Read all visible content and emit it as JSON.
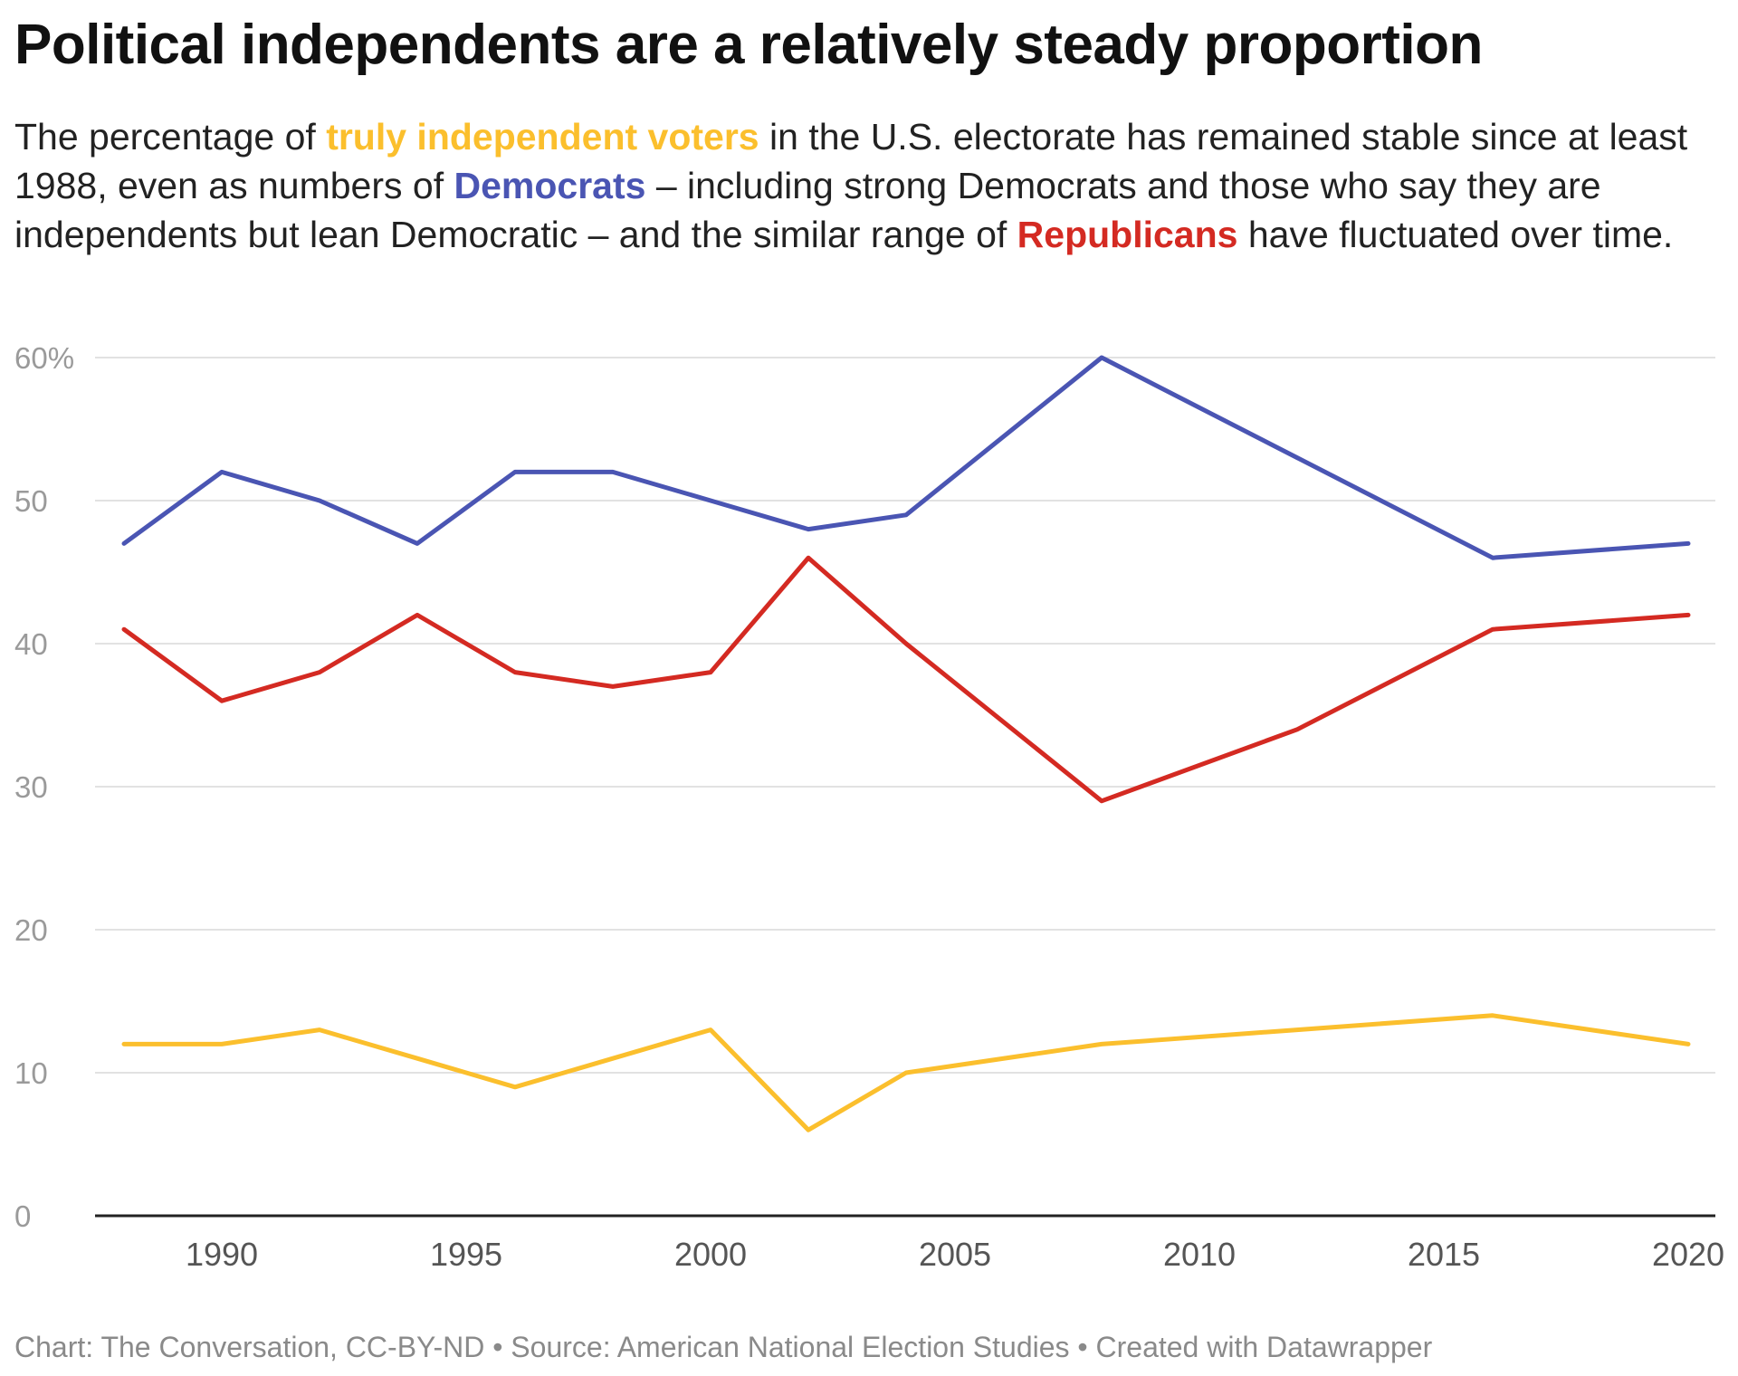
{
  "title": "Political independents are a relatively steady proportion",
  "subtitle": {
    "part1": "The percentage of ",
    "ind": "truly independent voters",
    "part2": " in the U.S. electorate has remained stable since at least 1988, even as numbers of ",
    "dem": "Democrats",
    "part3": " – including strong Democrats and those who say they are independents but lean Democratic – and the similar range of ",
    "rep": "Republicans",
    "part4": " have fluctuated over time."
  },
  "footer": "Chart: The Conversation, CC-BY-ND • Source: American National Election Studies • Created with Datawrapper",
  "chart_data": {
    "type": "line",
    "x": [
      1988,
      1990,
      1992,
      1994,
      1996,
      1998,
      2000,
      2002,
      2004,
      2008,
      2012,
      2016,
      2020
    ],
    "series": [
      {
        "key": "democrats",
        "color": "#4a55b3",
        "values": [
          47,
          52,
          50,
          47,
          52,
          52,
          50,
          48,
          49,
          60,
          53,
          46,
          47
        ]
      },
      {
        "key": "republicans",
        "color": "#d42a22",
        "values": [
          41,
          36,
          38,
          42,
          38,
          37,
          38,
          46,
          40,
          29,
          34,
          41,
          42
        ]
      },
      {
        "key": "independents",
        "color": "#fbbf2d",
        "values": [
          12,
          12,
          13,
          11,
          9,
          11,
          13,
          6,
          10,
          12,
          13,
          14,
          12
        ]
      }
    ],
    "xlim": [
      1988,
      2020
    ],
    "ylim": [
      0,
      60
    ],
    "yticks": [
      0,
      10,
      20,
      30,
      40,
      50,
      60
    ],
    "ytick_labels": [
      "0",
      "10",
      "20",
      "30",
      "40",
      "50",
      "60%"
    ],
    "xticks": [
      1990,
      1995,
      2000,
      2005,
      2010,
      2015,
      2020
    ],
    "xtick_labels": [
      "1990",
      "1995",
      "2000",
      "2005",
      "2010",
      "2015",
      "2020"
    ],
    "grid": true,
    "legend": "none (colored words in subtitle)"
  }
}
